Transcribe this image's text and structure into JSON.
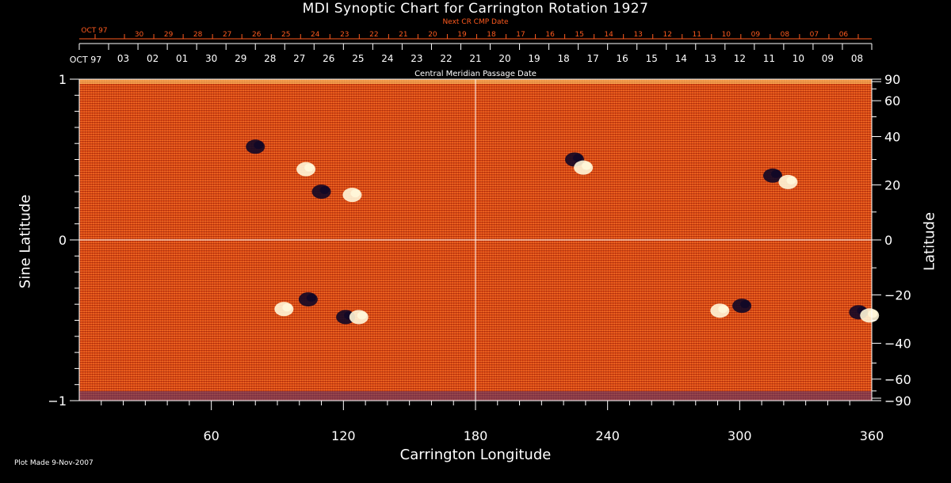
{
  "title": "MDI Synoptic Chart for Carrington Rotation 1927",
  "next_cr_label": "Next CR CMP Date",
  "cmp_label": "Central Meridian Passage Date",
  "ylabel_left": "Sine Latitude",
  "ylabel_right": "Latitude",
  "xlabel": "Carrington Longitude",
  "plot_made": "Plot Made  9-Nov-2007",
  "colors": {
    "background": "#000000",
    "text": "#ffffff",
    "next_cr_text": "#ff5a1e",
    "map_base": "#e8501a"
  },
  "chart_data": {
    "type": "heatmap",
    "xlim": [
      0,
      360
    ],
    "ylim": [
      -1,
      1
    ],
    "x_ticks": [
      60,
      120,
      180,
      240,
      300,
      360
    ],
    "y_left_ticks": [
      {
        "value": 1,
        "label": "1"
      },
      {
        "value": 0,
        "label": "0"
      },
      {
        "value": -1,
        "label": "−1"
      }
    ],
    "y_right_ticks": [
      {
        "value": 90,
        "label": "90"
      },
      {
        "value": 60,
        "label": "60"
      },
      {
        "value": 40,
        "label": "40"
      },
      {
        "value": 20,
        "label": "20"
      },
      {
        "value": 0,
        "label": "0"
      },
      {
        "value": -20,
        "label": "−20"
      },
      {
        "value": -40,
        "label": "−40"
      },
      {
        "value": -60,
        "label": "−60"
      },
      {
        "value": -90,
        "label": "−90"
      }
    ],
    "top_month_label": "OCT 97",
    "top_dates": [
      "03",
      "02",
      "01",
      "30",
      "29",
      "28",
      "27",
      "26",
      "25",
      "24",
      "23",
      "22",
      "21",
      "20",
      "19",
      "18",
      "17",
      "16",
      "15",
      "14",
      "13",
      "12",
      "11",
      "10",
      "09",
      "08"
    ],
    "next_month_label": "OCT 97",
    "next_dates": [
      "30",
      "29",
      "28",
      "27",
      "26",
      "25",
      "24",
      "23",
      "22",
      "21",
      "20",
      "19",
      "18",
      "17",
      "16",
      "15",
      "14",
      "13",
      "12",
      "11",
      "10",
      "09",
      "08",
      "07",
      "06"
    ],
    "active_regions": [
      {
        "lon": 80,
        "lat_sin": 0.58,
        "polarity": "negative"
      },
      {
        "lon": 103,
        "lat_sin": 0.44,
        "polarity": "positive"
      },
      {
        "lon": 110,
        "lat_sin": 0.3,
        "polarity": "negative"
      },
      {
        "lon": 124,
        "lat_sin": 0.28,
        "polarity": "positive"
      },
      {
        "lon": 225,
        "lat_sin": 0.5,
        "polarity": "negative"
      },
      {
        "lon": 229,
        "lat_sin": 0.45,
        "polarity": "positive"
      },
      {
        "lon": 315,
        "lat_sin": 0.4,
        "polarity": "negative"
      },
      {
        "lon": 322,
        "lat_sin": 0.36,
        "polarity": "positive"
      },
      {
        "lon": 93,
        "lat_sin": -0.43,
        "polarity": "positive"
      },
      {
        "lon": 104,
        "lat_sin": -0.37,
        "polarity": "negative"
      },
      {
        "lon": 121,
        "lat_sin": -0.48,
        "polarity": "negative"
      },
      {
        "lon": 127,
        "lat_sin": -0.48,
        "polarity": "positive"
      },
      {
        "lon": 291,
        "lat_sin": -0.44,
        "polarity": "positive"
      },
      {
        "lon": 301,
        "lat_sin": -0.41,
        "polarity": "negative"
      },
      {
        "lon": 354,
        "lat_sin": -0.45,
        "polarity": "negative"
      },
      {
        "lon": 359,
        "lat_sin": -0.47,
        "polarity": "positive"
      }
    ]
  }
}
